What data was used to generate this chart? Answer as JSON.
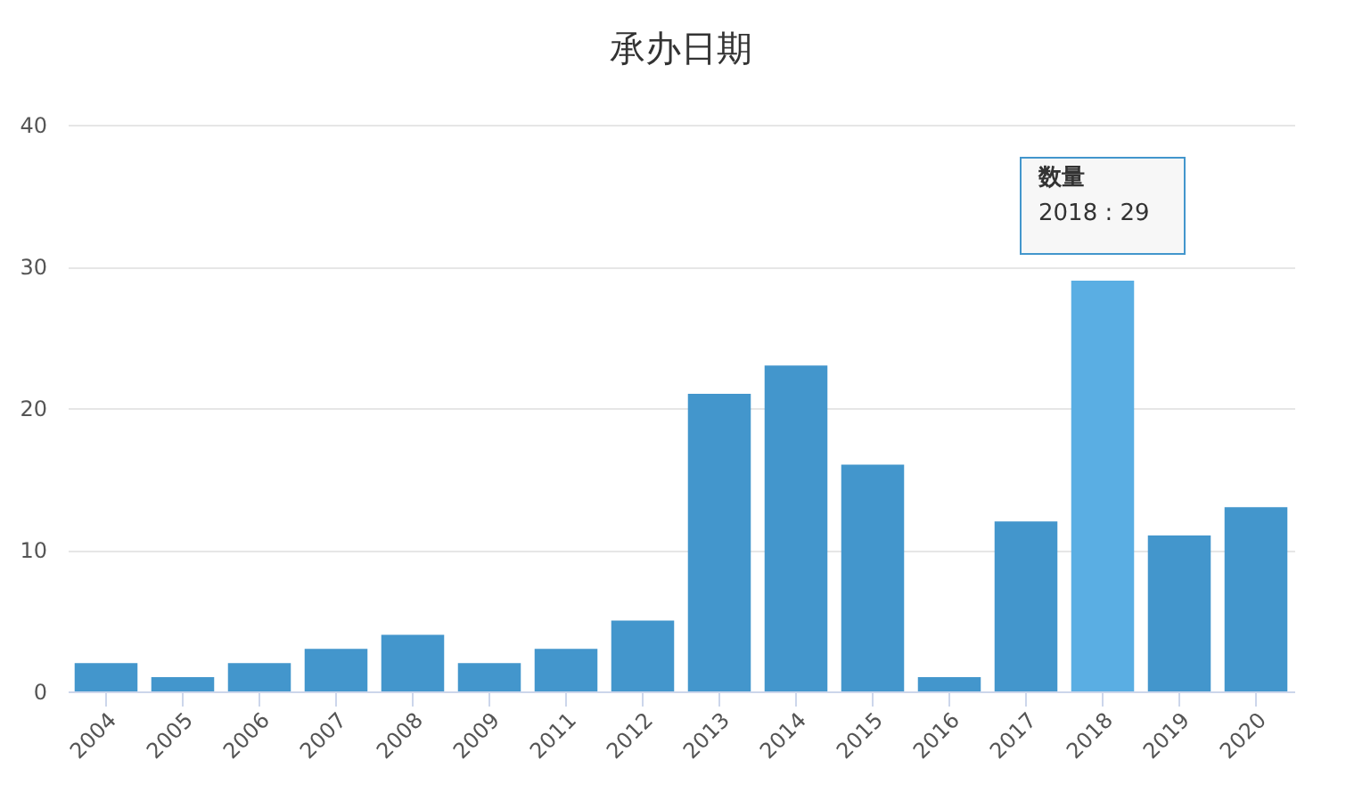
{
  "chart_data": {
    "type": "bar",
    "title": "承办日期",
    "categories": [
      "2004",
      "2005",
      "2006",
      "2007",
      "2008",
      "2009",
      "2011",
      "2012",
      "2013",
      "2014",
      "2015",
      "2016",
      "2017",
      "2018",
      "2019",
      "2020"
    ],
    "values": [
      2,
      1,
      2,
      3,
      4,
      2,
      3,
      5,
      21,
      23,
      16,
      1,
      12,
      29,
      11,
      13
    ],
    "colors": [
      "#4396cc",
      "#4396cc",
      "#4396cc",
      "#4396cc",
      "#4396cc",
      "#4396cc",
      "#4396cc",
      "#4396cc",
      "#4396cc",
      "#4396cc",
      "#4396cc",
      "#4396cc",
      "#4396cc",
      "#5aaee3",
      "#4396cc",
      "#4396cc"
    ],
    "ylim": [
      0,
      40
    ],
    "yticks": [
      0,
      10,
      20,
      30,
      40
    ],
    "grid": "y",
    "legend": false,
    "annotations": [
      "数量",
      {
        "text": "2018 : 29",
        "x": "2018",
        "y": 29
      }
    ]
  }
}
